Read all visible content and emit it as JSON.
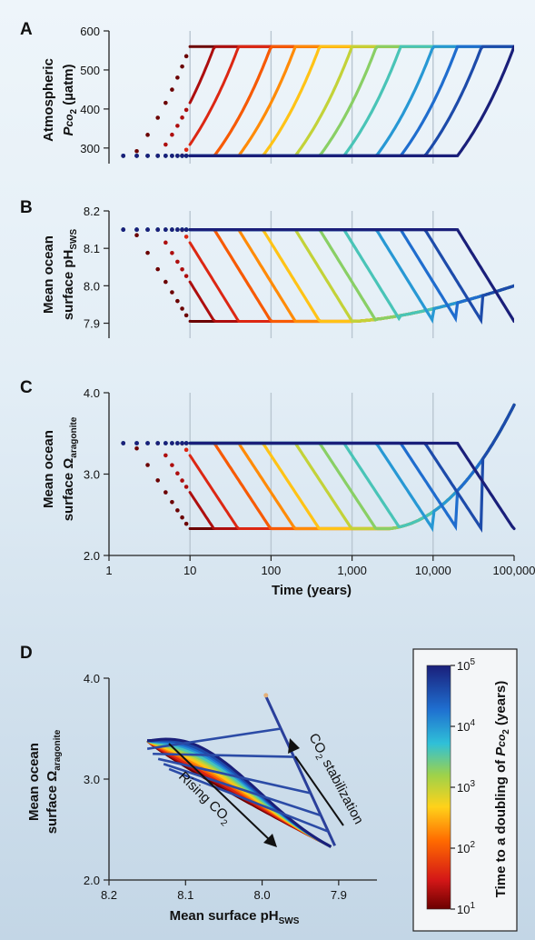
{
  "chart_data": [
    {
      "panel": "A",
      "type": "line",
      "ylabel": [
        "Atmospheric",
        "Pco2 (µatm)"
      ],
      "x_scale": "log",
      "xlim": [
        1,
        100000
      ],
      "ylim": [
        260,
        600
      ],
      "yticks": [
        "300",
        "400",
        "500",
        "600"
      ],
      "ytick_values": [
        300,
        400,
        500,
        600
      ],
      "description_series": "Pco2 rises from 280 to 560 µatm over doubling times 10^1 to 10^5 years"
    },
    {
      "panel": "B",
      "type": "line",
      "ylabel": [
        "Mean ocean",
        "surface pHsws"
      ],
      "x_scale": "log",
      "xlim": [
        1,
        100000
      ],
      "ylim": [
        7.86,
        8.2
      ],
      "yticks": [
        "7.9",
        "8.0",
        "8.1",
        "8.2"
      ],
      "ytick_values": [
        7.9,
        8.0,
        8.1,
        8.2
      ]
    },
    {
      "panel": "C",
      "type": "line",
      "ylabel": [
        "Mean ocean",
        "surface Ωaragonite"
      ],
      "x_scale": "log",
      "xlim": [
        1,
        100000
      ],
      "ylim": [
        2.0,
        4.0
      ],
      "yticks": [
        "2.0",
        "3.0",
        "4.0"
      ],
      "ytick_values": [
        2.0,
        3.0,
        4.0
      ],
      "xlabel": "Time (years)",
      "xticks": [
        "1",
        "10",
        "100",
        "1,000",
        "10,000",
        "100,000"
      ],
      "xtick_values": [
        1,
        10,
        100,
        1000,
        10000,
        100000
      ]
    },
    {
      "panel": "D",
      "type": "line",
      "ylabel": [
        "Mean ocean",
        "surface Ωaragonite"
      ],
      "xlabel": "Mean surface pHsws",
      "xlim": [
        8.2,
        7.85
      ],
      "ylim": [
        2.0,
        4.0
      ],
      "xticks": [
        "8.2",
        "8.1",
        "8.0",
        "7.9"
      ],
      "xtick_values": [
        8.2,
        8.1,
        8.0,
        7.9
      ],
      "yticks": [
        "2.0",
        "3.0",
        "4.0"
      ],
      "ytick_values": [
        2.0,
        3.0,
        4.0
      ],
      "annotations": [
        "Rising CO2",
        "CO2 stabilization"
      ]
    }
  ],
  "colorbar": {
    "label": "Time to a doubling of Pco2 (years)",
    "ticks": [
      "10^1",
      "10^2",
      "10^3",
      "10^4",
      "10^5"
    ],
    "tick_exponents": [
      1,
      2,
      3,
      4,
      5
    ],
    "colors": [
      "#7a0a0a",
      "#d11d1d",
      "#ff8a00",
      "#f2e21a",
      "#4fc3a0",
      "#22b8f0",
      "#1f5fc8",
      "#1a237e"
    ]
  },
  "series_exponents": [
    1.0,
    1.3,
    1.6,
    2.0,
    2.3,
    2.6,
    3.0,
    3.3,
    3.6,
    4.0,
    4.3,
    4.6,
    5.0
  ],
  "labels": {
    "panel_a": "A",
    "panel_b": "B",
    "panel_c": "C",
    "panel_d": "D",
    "ylab_a1": "Atmospheric",
    "ylab_a2_pre": "P",
    "ylab_a2_co": "co",
    "ylab_a2_sub": "2",
    "ylab_a2_post": " (µatm)",
    "ylab_b1": "Mean ocean",
    "ylab_b2": "surface pH",
    "ylab_b2_sub": "SWS",
    "ylab_c1": "Mean ocean",
    "ylab_c2": "surface Ω",
    "ylab_c2_sub": "aragonite",
    "xlab_c": "Time (years)",
    "xlab_d": "Mean surface pH",
    "xlab_d_sub": "SWS",
    "ann_rising": "Rising CO",
    "ann_rising_sub": "2",
    "ann_stab_pre": "CO",
    "ann_stab_sub": "2",
    "ann_stab_post": " stabilization",
    "cb_label_pre": "Time to a doubling of ",
    "cb_label_p": "P",
    "cb_label_co": "co",
    "cb_label_sub": "2",
    "cb_label_post": " (years)",
    "cb_base": "10"
  }
}
